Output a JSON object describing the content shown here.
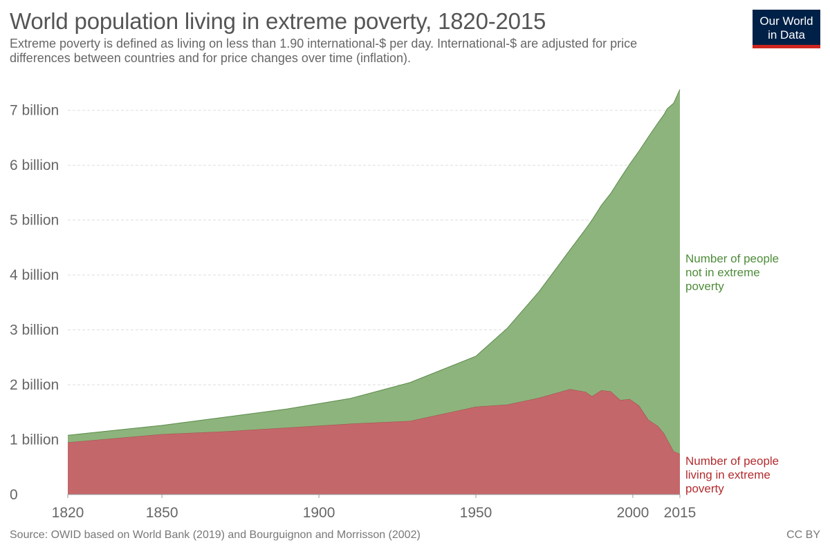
{
  "header": {
    "title": "World population living in extreme poverty, 1820-2015",
    "subtitle": "Extreme poverty is defined as living on less than 1.90 international-$ per day. International-$ are adjusted for price differences between countries and for price changes over time (inflation)."
  },
  "logo": {
    "line1": "Our World",
    "line2": "in Data",
    "bg_color": "#002147",
    "bar_color": "#ce261e"
  },
  "footer": {
    "source": "Source: OWID based on World Bank (2019) and Bourguignon and Morrisson (2002)",
    "license": "CC BY"
  },
  "chart_data": {
    "type": "area",
    "stacked": true,
    "title": "World population living in extreme poverty, 1820-2015",
    "xlim": [
      1820,
      2015
    ],
    "ylim": [
      0,
      7500000000
    ],
    "grid": true,
    "legend_placement": "right-inline",
    "x_ticks": [
      {
        "value": 1820,
        "label": "1820"
      },
      {
        "value": 1850,
        "label": "1850"
      },
      {
        "value": 1900,
        "label": "1900"
      },
      {
        "value": 1950,
        "label": "1950"
      },
      {
        "value": 2000,
        "label": "2000"
      },
      {
        "value": 2015,
        "label": "2015"
      }
    ],
    "y_ticks": [
      {
        "value": 0,
        "label": "0"
      },
      {
        "value": 1000000000,
        "label": "1 billion"
      },
      {
        "value": 2000000000,
        "label": "2 billion"
      },
      {
        "value": 3000000000,
        "label": "3 billion"
      },
      {
        "value": 4000000000,
        "label": "4 billion"
      },
      {
        "value": 5000000000,
        "label": "5 billion"
      },
      {
        "value": 6000000000,
        "label": "6 billion"
      },
      {
        "value": 7000000000,
        "label": "7 billion"
      }
    ],
    "x": [
      1820,
      1850,
      1870,
      1890,
      1910,
      1929,
      1950,
      1960,
      1970,
      1980,
      1985,
      1987,
      1990,
      1993,
      1996,
      1999,
      2002,
      2005,
      2008,
      2010,
      2011,
      2012,
      2013,
      2015
    ],
    "series": [
      {
        "name": "Number of people living in extreme poverty",
        "label_lines": [
          "Number of people",
          "living in extreme",
          "poverty"
        ],
        "color": "#c4676a",
        "line_color": "#9e4a4c",
        "label_color": "#b32b2e",
        "values": [
          950000000,
          1100000000,
          1150000000,
          1220000000,
          1290000000,
          1340000000,
          1600000000,
          1640000000,
          1760000000,
          1920000000,
          1870000000,
          1790000000,
          1900000000,
          1880000000,
          1720000000,
          1740000000,
          1620000000,
          1360000000,
          1250000000,
          1110000000,
          1000000000,
          900000000,
          790000000,
          740000000
        ]
      },
      {
        "name": "Number of people not in extreme poverty",
        "label_lines": [
          "Number of people",
          "not in extreme",
          "poverty"
        ],
        "color": "#8db47c",
        "line_color": "#5a8a4a",
        "label_color": "#4e8c3a",
        "values": [
          130000000,
          160000000,
          260000000,
          340000000,
          460000000,
          700000000,
          920000000,
          1390000000,
          1930000000,
          2540000000,
          2970000000,
          3210000000,
          3370000000,
          3610000000,
          4040000000,
          4280000000,
          4640000000,
          5160000000,
          5520000000,
          5820000000,
          6030000000,
          6180000000,
          6340000000,
          6640000000
        ]
      }
    ]
  }
}
